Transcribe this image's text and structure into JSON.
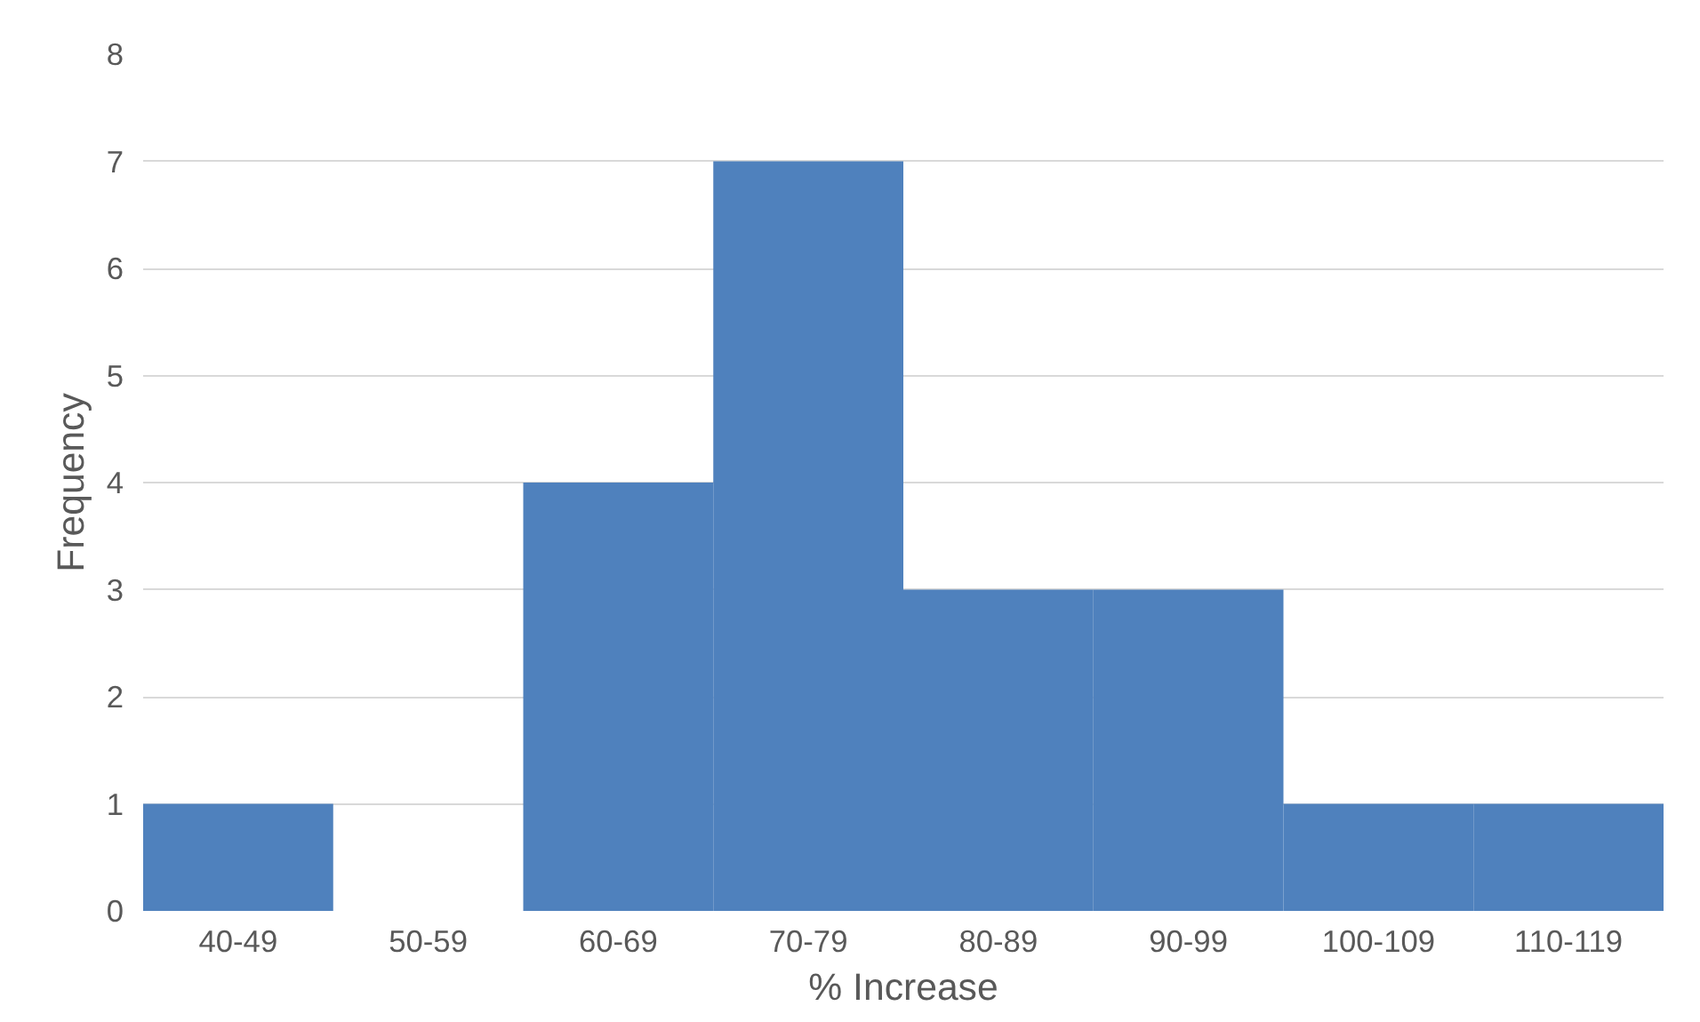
{
  "chart_data": {
    "type": "bar",
    "xlabel": "% Increase",
    "ylabel": "Frequency",
    "categories": [
      "40-49",
      "50-59",
      "60-69",
      "70-79",
      "80-89",
      "90-99",
      "100-109",
      "110-119"
    ],
    "values": [
      1,
      0,
      4,
      7,
      3,
      3,
      1,
      1
    ],
    "color": "#4f81bd",
    "ylim": [
      0,
      8
    ],
    "yticks": [
      0,
      1,
      2,
      3,
      4,
      5,
      6,
      7,
      8
    ],
    "grid": "y"
  }
}
